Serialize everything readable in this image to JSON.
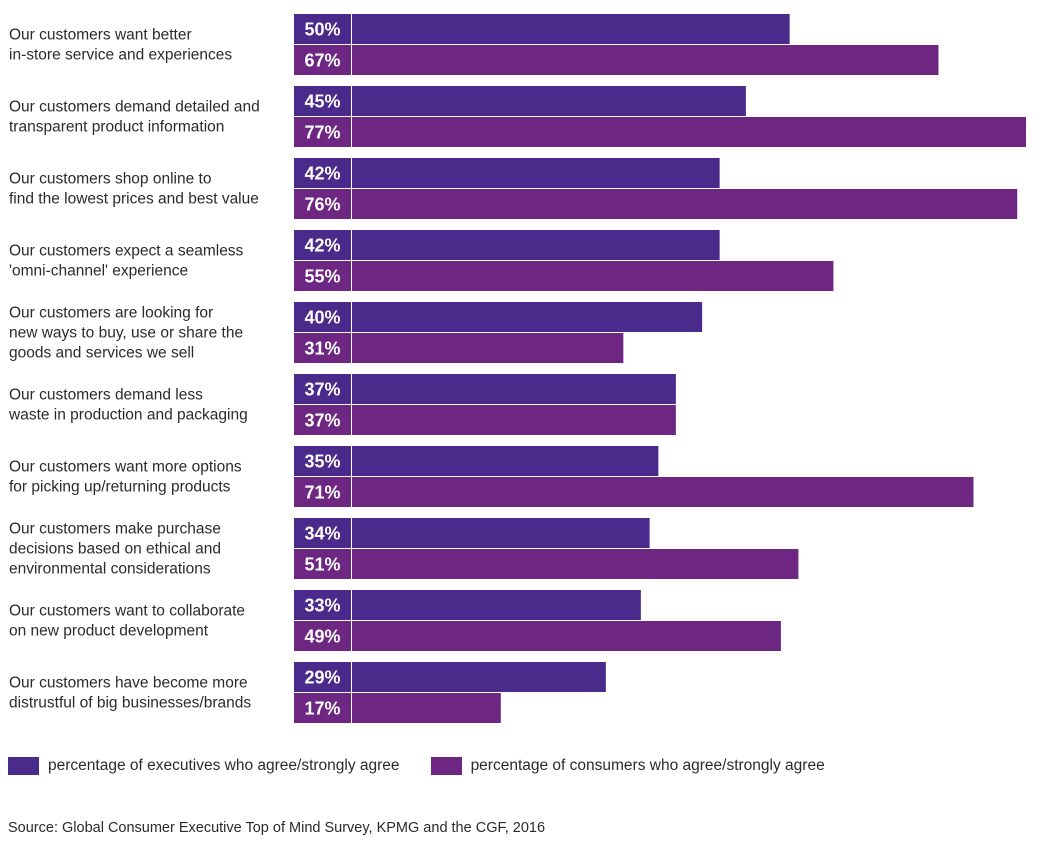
{
  "chart_data": {
    "type": "bar",
    "orientation": "horizontal",
    "categories": [
      [
        "Our customers want better",
        "in-store service and experiences"
      ],
      [
        "Our customers demand detailed and",
        "transparent product information"
      ],
      [
        "Our customers shop online to",
        "find the lowest prices and best value"
      ],
      [
        "Our customers expect a seamless",
        "'omni-channel' experience"
      ],
      [
        "Our customers are looking for",
        "new ways to buy, use or share the",
        "goods and services we sell"
      ],
      [
        "Our customers demand less",
        "waste in production and packaging"
      ],
      [
        "Our customers want more options",
        "for picking up/returning products"
      ],
      [
        "Our customers make purchase",
        "decisions based on ethical and",
        "environmental considerations"
      ],
      [
        "Our customers want to collaborate",
        "on new product development"
      ],
      [
        "Our customers have become more",
        "distrustful of big businesses/brands"
      ]
    ],
    "series": [
      {
        "name": "percentage of executives who agree/strongly agree",
        "color": "#4a2a8a",
        "values": [
          50,
          45,
          42,
          42,
          40,
          37,
          35,
          34,
          33,
          29
        ]
      },
      {
        "name": "percentage of consumers who agree/strongly agree",
        "color": "#6d2783",
        "values": [
          67,
          77,
          76,
          55,
          31,
          37,
          71,
          51,
          49,
          17
        ]
      }
    ],
    "value_suffix": "%",
    "xlim": [
      0,
      77
    ],
    "grid": false,
    "legend_position": "bottom-left"
  },
  "legend": {
    "executives": "percentage of executives who agree/strongly agree",
    "consumers": "percentage of consumers who agree/strongly agree"
  },
  "source": "Source: Global Consumer Executive Top of Mind Survey, KPMG and the CGF, 2016"
}
